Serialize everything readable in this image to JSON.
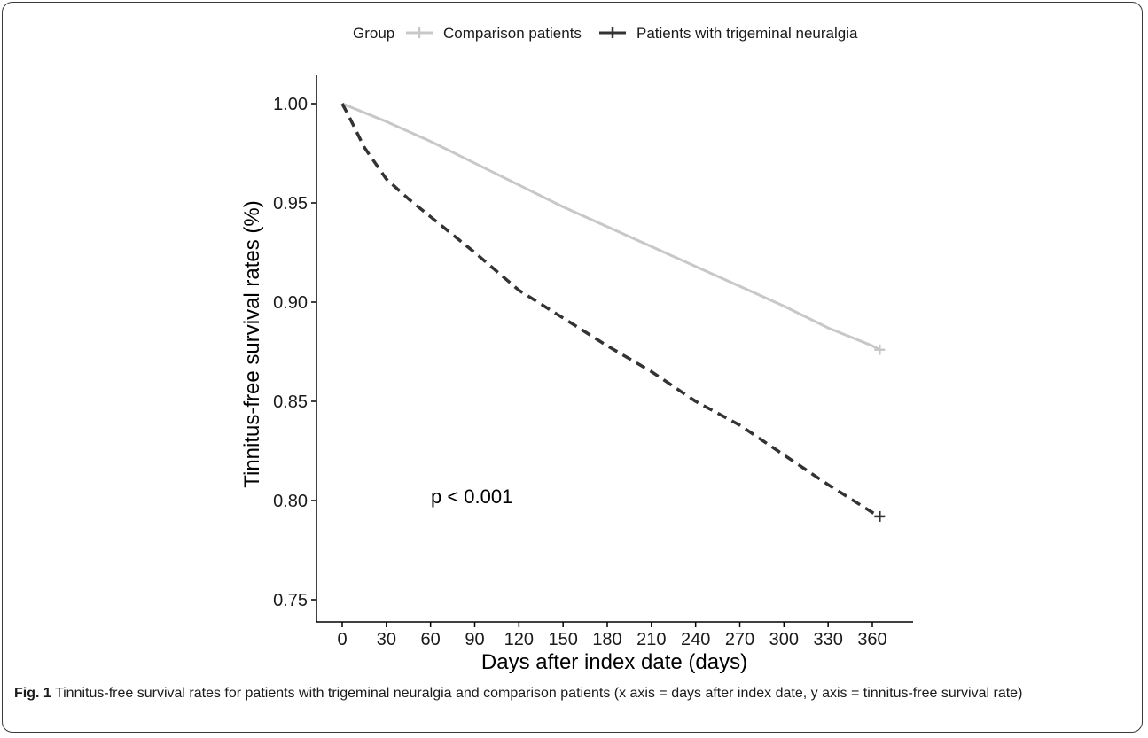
{
  "chart_data": {
    "type": "line",
    "title": "",
    "legend": {
      "title": "Group",
      "placement": "top"
    },
    "xlabel": "Days after index date (days)",
    "ylabel": "Tinnitus-free survival rates (%)",
    "xlim": [
      0,
      365
    ],
    "ylim": [
      0.75,
      1.0
    ],
    "xticks": [
      0,
      30,
      60,
      90,
      120,
      150,
      180,
      210,
      240,
      270,
      300,
      330,
      360
    ],
    "yticks": [
      0.75,
      0.8,
      0.85,
      0.9,
      0.95,
      1.0
    ],
    "ytick_labels": [
      "0.75",
      "0.80",
      "0.85",
      "0.90",
      "0.95",
      "1.00"
    ],
    "grid": false,
    "annotation": "p < 0.001",
    "series": [
      {
        "name": "Comparison patients",
        "color": "#c8c8c8",
        "style": "solid",
        "x": [
          0,
          30,
          60,
          90,
          120,
          150,
          180,
          210,
          240,
          270,
          300,
          330,
          360,
          365
        ],
        "y": [
          1.0,
          0.991,
          0.981,
          0.97,
          0.959,
          0.948,
          0.938,
          0.928,
          0.918,
          0.908,
          0.898,
          0.887,
          0.878,
          0.876
        ]
      },
      {
        "name": "Patients with trigeminal neuralgia",
        "color": "#333333",
        "style": "dashed",
        "x": [
          0,
          5,
          15,
          30,
          45,
          60,
          90,
          120,
          150,
          180,
          210,
          240,
          270,
          300,
          330,
          360,
          365
        ],
        "y": [
          1.0,
          0.993,
          0.978,
          0.962,
          0.952,
          0.943,
          0.925,
          0.906,
          0.892,
          0.878,
          0.865,
          0.85,
          0.838,
          0.823,
          0.808,
          0.794,
          0.792
        ]
      }
    ]
  },
  "caption": {
    "label": "Fig. 1",
    "text": " Tinnitus-free survival rates for patients with trigeminal neuralgia and comparison patients (x axis = days after index date, y axis = tinnitus-free survival rate)"
  }
}
